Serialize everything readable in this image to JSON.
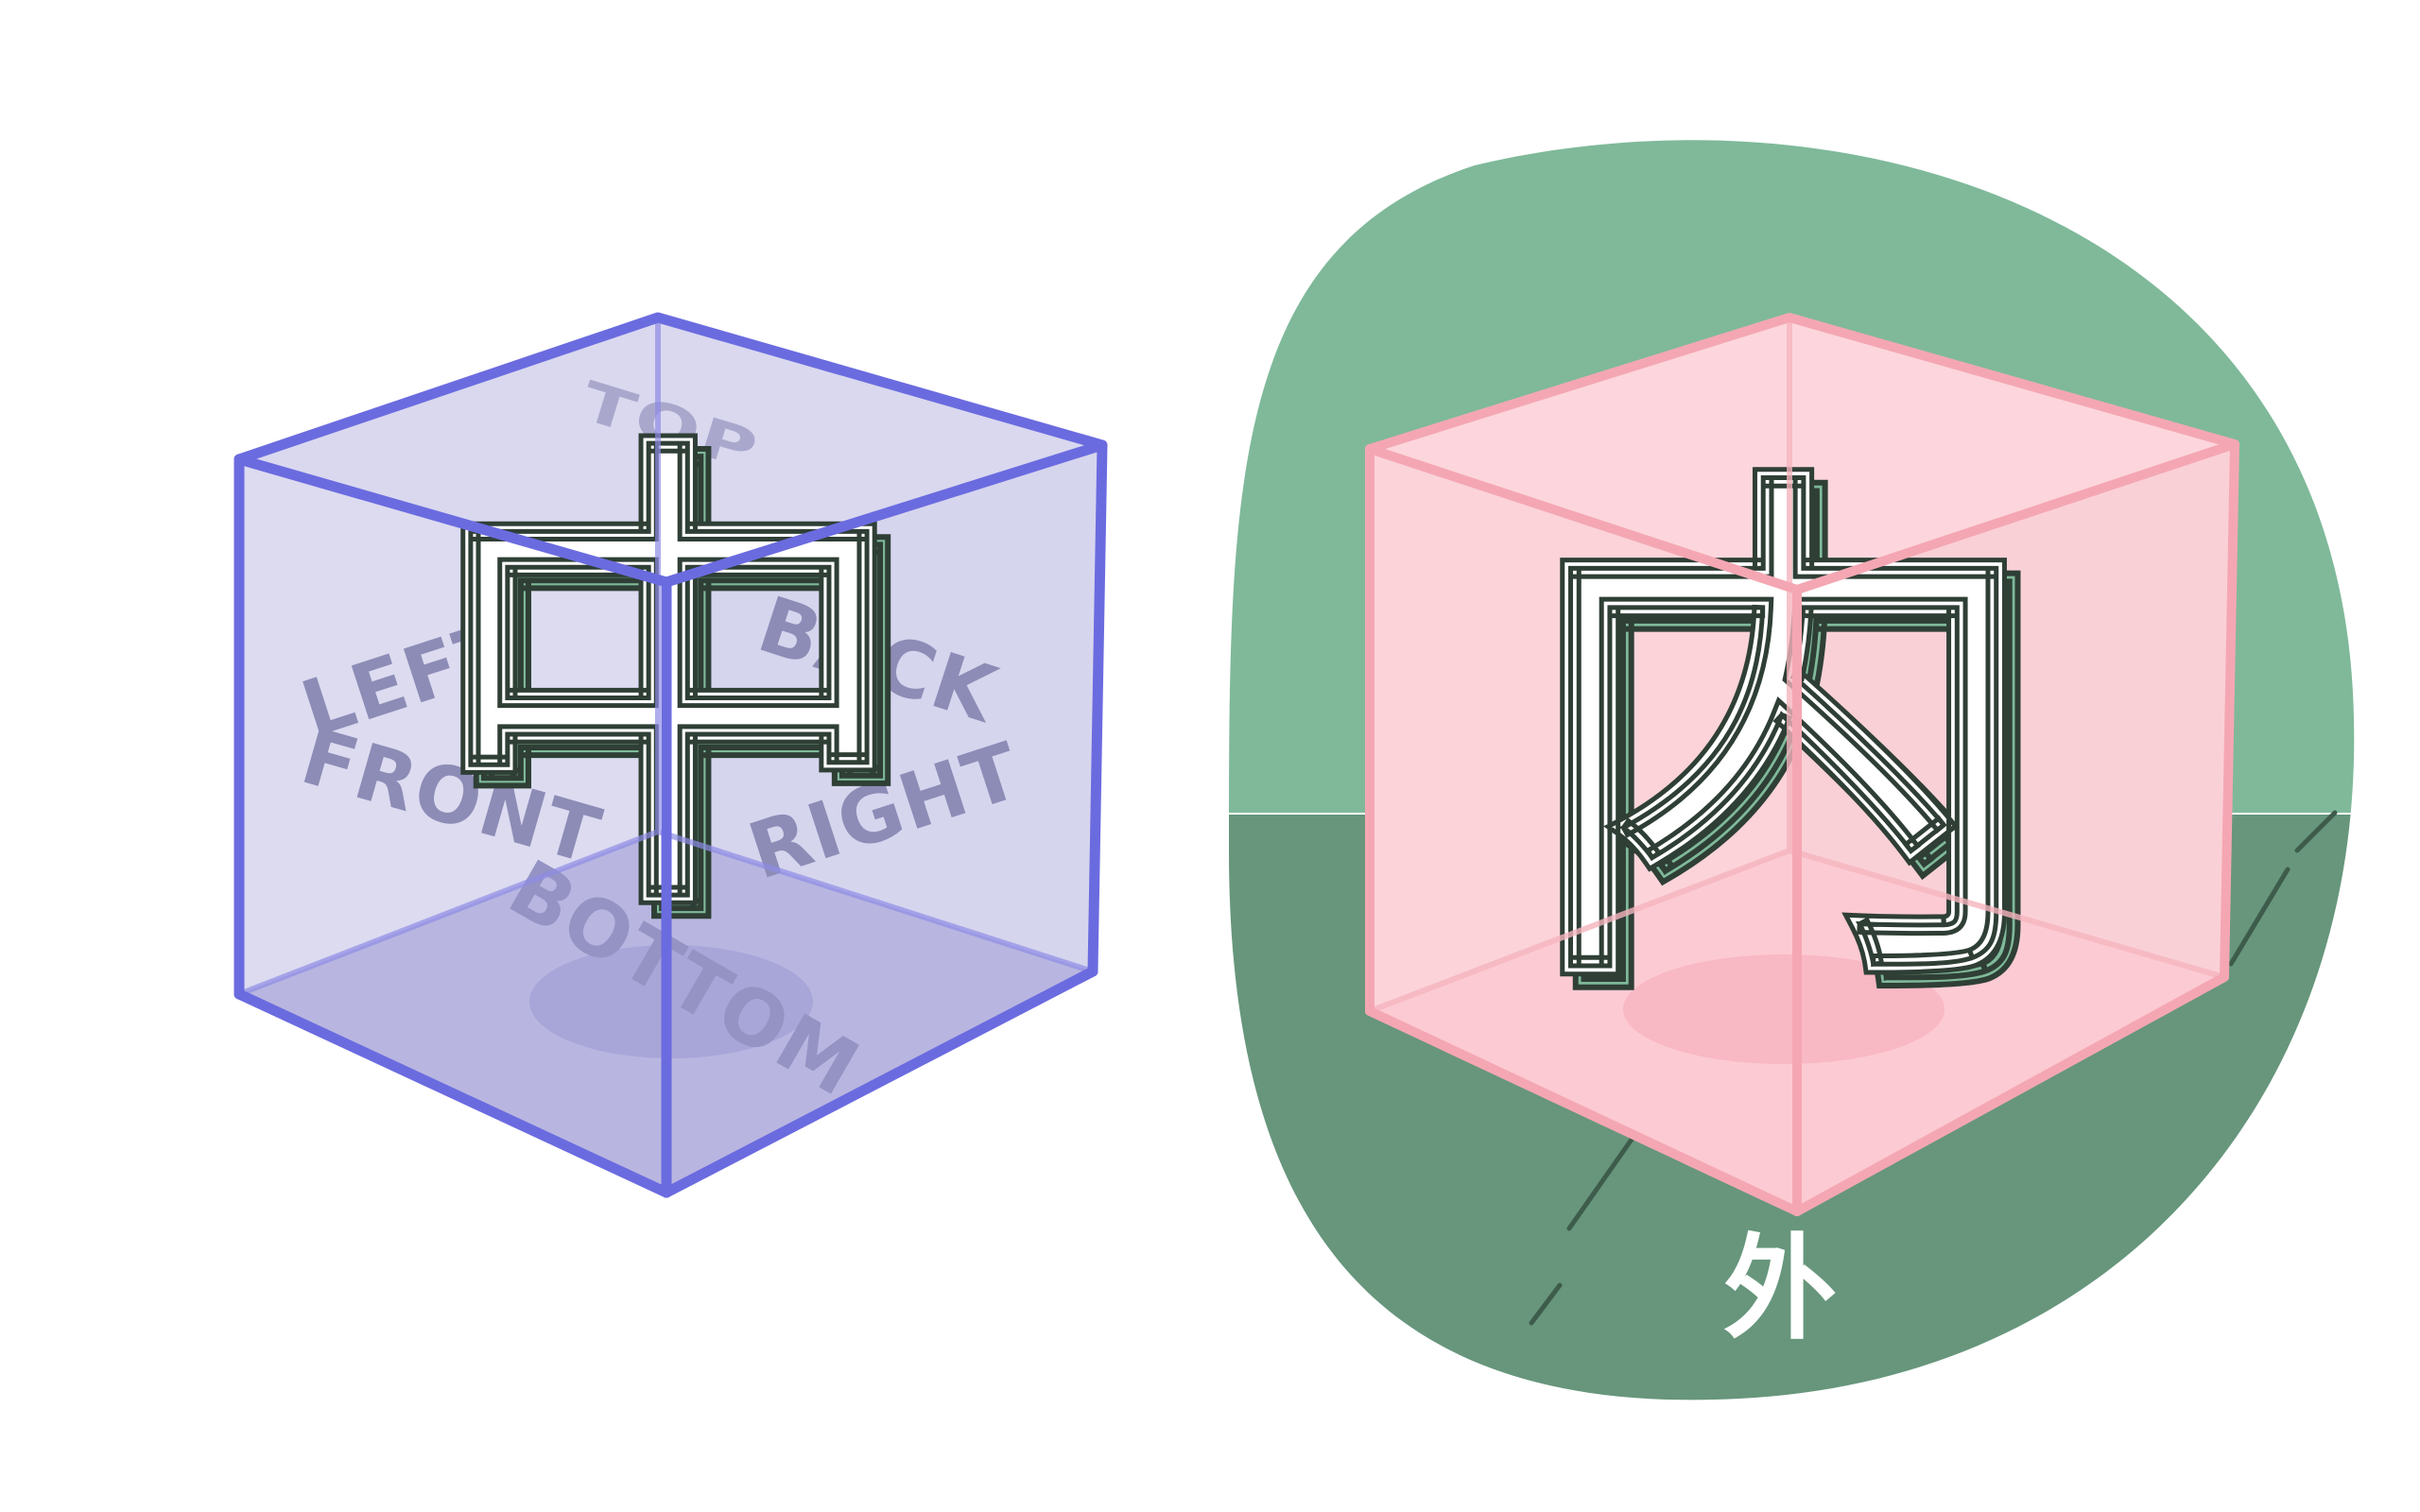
{
  "left_cube": {
    "faces": {
      "top": "TOP",
      "left": "LEFT",
      "back": "BACK",
      "front": "FRONT",
      "right": "RIGHT",
      "bottom": "BOTTOM"
    },
    "character": "中",
    "colors": {
      "edge": "#6b6be0",
      "fill": "#d9d8ef",
      "floor": "#b5b3df",
      "label": "#8c8cb6"
    }
  },
  "right_cube": {
    "character": "内",
    "outside_label": "外",
    "colors": {
      "edge": "#f4a7b3",
      "fill": "#fcd6dc",
      "wall": "#7fb99a",
      "ground": "#67967c"
    }
  },
  "character_colors": {
    "face": "#ffffff",
    "side": "#7fb99a",
    "outline": "#2f3f36"
  }
}
